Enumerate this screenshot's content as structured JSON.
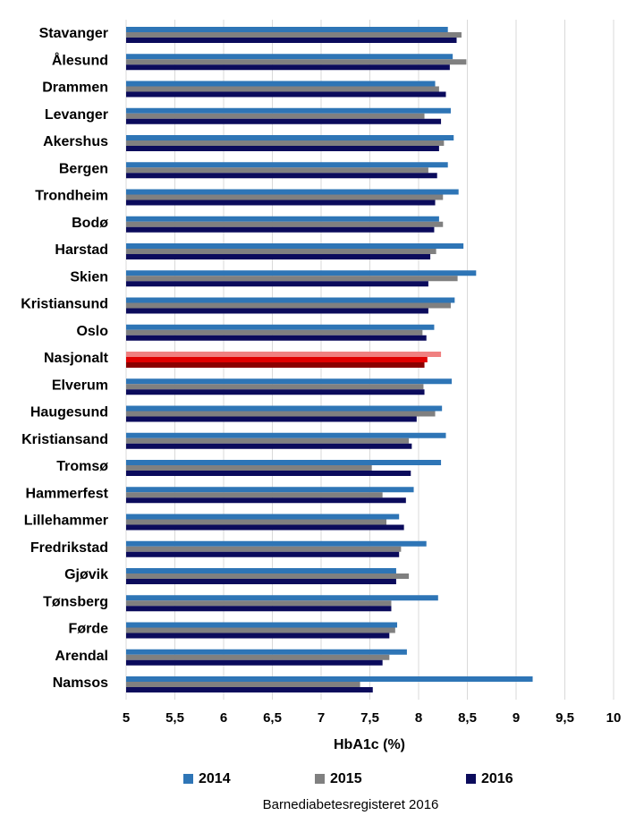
{
  "chart_data": {
    "type": "barh",
    "source": "Barnediabetesregisteret 2016",
    "xlabel": "HbA1c (%)",
    "categories": [
      "Stavanger",
      "Ålesund",
      "Drammen",
      "Levanger",
      "Akershus",
      "Bergen",
      "Trondheim",
      "Bodø",
      "Harstad",
      "Skien",
      "Kristiansund",
      "Oslo",
      "Nasjonalt",
      "Elverum",
      "Haugesund",
      "Kristiansand",
      "Tromsø",
      "Hammerfest",
      "Lillehammer",
      "Fredrikstad",
      "Gjøvik",
      "Tønsberg",
      "Førde",
      "Arendal",
      "Namsos"
    ],
    "highlight": "Nasjonalt",
    "series": [
      {
        "name": "2014",
        "color": "#2e75b6",
        "highlight_color": "#f08080",
        "values": [
          8.3,
          8.35,
          8.17,
          8.33,
          8.36,
          8.3,
          8.41,
          8.21,
          8.46,
          8.59,
          8.37,
          8.16,
          8.23,
          8.34,
          8.24,
          8.28,
          8.23,
          7.95,
          7.8,
          8.08,
          7.77,
          8.2,
          7.78,
          7.88,
          9.17
        ]
      },
      {
        "name": "2015",
        "color": "#808080",
        "highlight_color": "#e00000",
        "values": [
          8.44,
          8.49,
          8.21,
          8.06,
          8.26,
          8.1,
          8.25,
          8.25,
          8.18,
          8.4,
          8.33,
          8.04,
          8.09,
          8.05,
          8.17,
          7.9,
          7.52,
          7.63,
          7.67,
          7.82,
          7.9,
          7.72,
          7.76,
          7.7,
          7.4
        ]
      },
      {
        "name": "2016",
        "color": "#0b0b5c",
        "highlight_color": "#8b0000",
        "values": [
          8.39,
          8.32,
          8.28,
          8.23,
          8.21,
          8.19,
          8.17,
          8.16,
          8.12,
          8.1,
          8.1,
          8.08,
          8.06,
          8.06,
          7.98,
          7.93,
          7.92,
          7.87,
          7.85,
          7.8,
          7.77,
          7.72,
          7.7,
          7.63,
          7.53
        ]
      }
    ],
    "xlim": [
      5,
      10
    ],
    "xticks": [
      5,
      {
        "value": 5.5,
        "label": "5,5"
      },
      6,
      {
        "value": 6.5,
        "label": "6,5"
      },
      7,
      {
        "value": 7.5,
        "label": "7,5"
      },
      8,
      {
        "value": 8.5,
        "label": "8,5"
      },
      9,
      {
        "value": 9.5,
        "label": "9,5"
      },
      10
    ],
    "grid": true
  }
}
